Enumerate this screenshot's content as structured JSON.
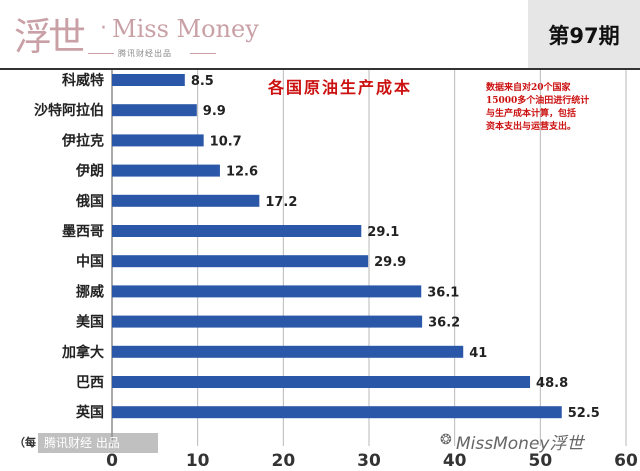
{
  "header": {
    "logo_glyph": "浮世",
    "logo_dot": "·",
    "logo_title": "Miss Money",
    "logo_subtitle": "腾讯财经出品",
    "issue": "第97期"
  },
  "chart_data": {
    "type": "bar",
    "orientation": "horizontal",
    "title": "各国原油生产成本",
    "note": [
      "数据来自对20个国家",
      "15000多个油田进行统计",
      "与生产成本计算，包括",
      "资本支出与运营支出。"
    ],
    "categories": [
      "科威特",
      "沙特阿拉伯",
      "伊拉克",
      "伊朗",
      "俄国",
      "墨西哥",
      "中国",
      "挪威",
      "美国",
      "加拿大",
      "巴西",
      "英国"
    ],
    "values": [
      8.5,
      9.9,
      10.7,
      12.6,
      17.2,
      29.1,
      29.9,
      36.1,
      36.2,
      41,
      48.8,
      52.5
    ],
    "value_labels": [
      "8.5",
      "9.9",
      "10.7",
      "12.6",
      "17.2",
      "29.1",
      "29.9",
      "36.1",
      "36.2",
      "41",
      "48.8",
      "52.5"
    ],
    "xlim": [
      0,
      60
    ],
    "xticks": [
      0,
      10,
      20,
      30,
      40,
      50,
      60
    ],
    "xtick_labels": [
      "0",
      "10",
      "20",
      "30",
      "40",
      "50",
      "60"
    ],
    "xlabel_fragment": "（每",
    "grid": true,
    "bar_color": "#2b57a8",
    "grid_color": "#b9b9b9"
  },
  "watermarks": {
    "bottom_left": "腾讯财经 出品",
    "bottom_right": "MissMoney浮世",
    "bottom_right_icon": "wechat-icon"
  }
}
